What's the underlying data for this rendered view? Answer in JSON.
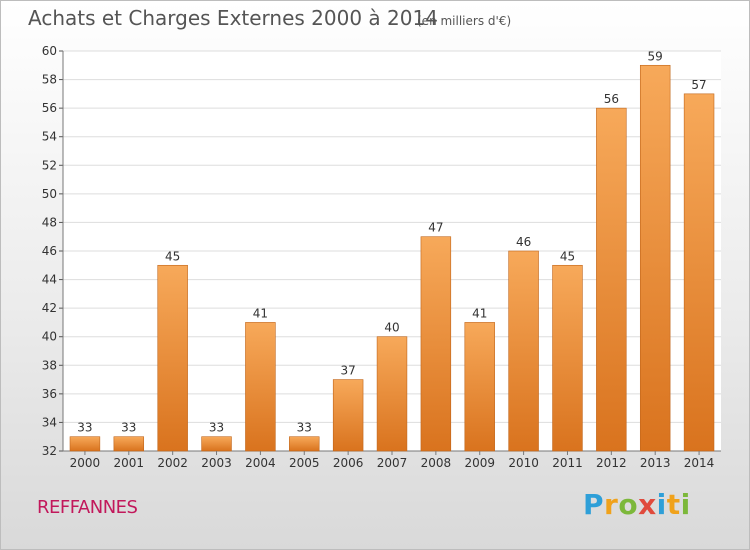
{
  "title": "Achats et Charges Externes 2000 à 2014",
  "subtitle": "(en milliers d'€)",
  "commune": "REFFANNES",
  "logo": {
    "letters": [
      "P",
      "r",
      "o",
      "x",
      "i",
      "t",
      "i"
    ],
    "colors": [
      "#2e9fd8",
      "#f0a21b",
      "#7cb83a",
      "#e04a3c",
      "#2e9fd8",
      "#f0a21b",
      "#7cb83a"
    ]
  },
  "colors": {
    "bar_top": "#f7a95a",
    "bar_bottom": "#d9731e",
    "bar_edge": "#c0651a",
    "axis_text": "#333333",
    "grid": "#dddddd"
  },
  "chart_data": {
    "type": "bar",
    "categories": [
      "2000",
      "2001",
      "2002",
      "2003",
      "2004",
      "2005",
      "2006",
      "2007",
      "2008",
      "2009",
      "2010",
      "2011",
      "2012",
      "2013",
      "2014"
    ],
    "values": [
      33,
      33,
      45,
      33,
      41,
      33,
      37,
      40,
      47,
      41,
      46,
      45,
      56,
      59,
      57
    ],
    "ylim": [
      32,
      60
    ],
    "yticks": [
      32,
      34,
      36,
      38,
      40,
      42,
      44,
      46,
      48,
      50,
      52,
      54,
      56,
      58,
      60
    ],
    "grid": true,
    "data_labels": true
  }
}
